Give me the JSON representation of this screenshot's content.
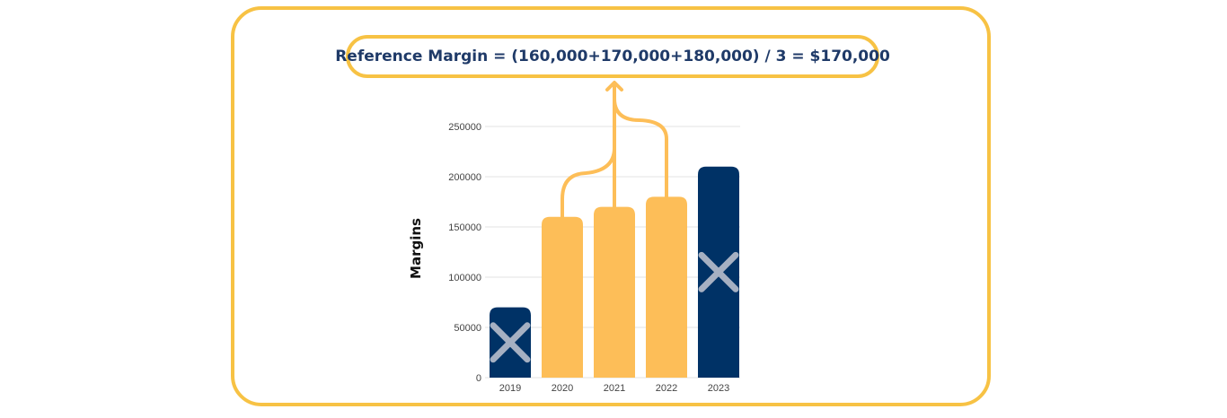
{
  "formula": "Reference Margin = (160,000+170,000+180,000) / 3 = $170,000",
  "colors": {
    "frame": "#F7C244",
    "highlight_bar": "#FDBE58",
    "excluded_bar": "#003266",
    "cross_mark": "#A6B0C2",
    "text": "#1F3A68"
  },
  "chart_data": {
    "type": "bar",
    "categories": [
      "2019",
      "2020",
      "2021",
      "2022",
      "2023"
    ],
    "values": [
      70000,
      160000,
      170000,
      180000,
      210000
    ],
    "included": [
      false,
      true,
      true,
      true,
      false
    ],
    "xlabel": "",
    "ylabel": "Margins",
    "ylim": [
      0,
      250000
    ],
    "yticks": [
      0,
      50000,
      100000,
      150000,
      200000,
      250000
    ],
    "ytick_labels": [
      "0",
      "50000",
      "100000",
      "150000",
      "200000",
      "250000"
    ],
    "grid": true,
    "legend": "none"
  }
}
